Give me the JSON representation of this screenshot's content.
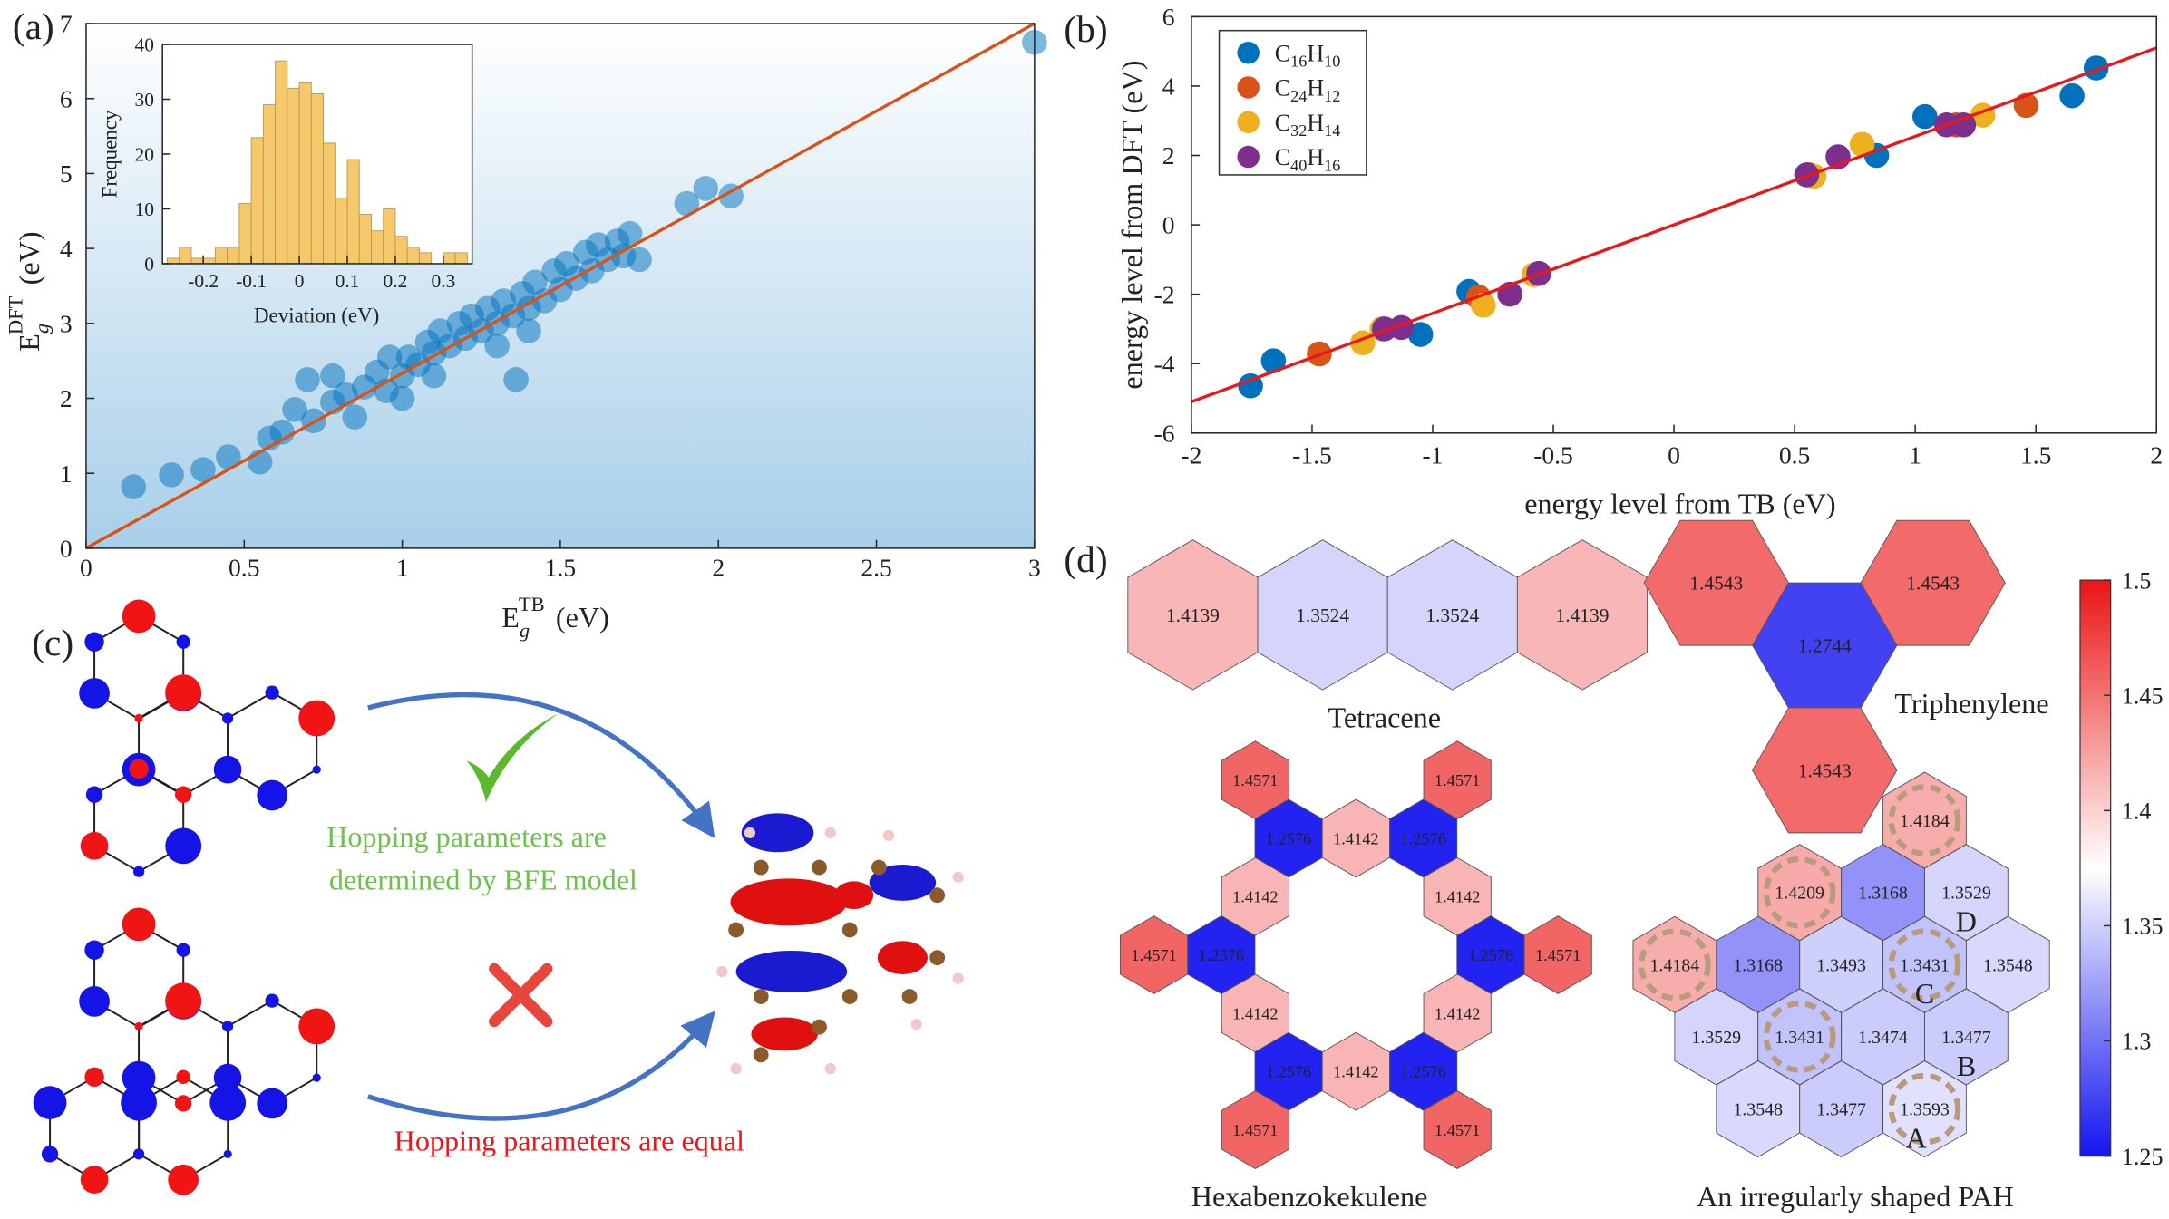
{
  "chart_data": [
    {
      "type": "scatter",
      "panel_label": "(a)",
      "xlabel": {
        "symbol": "E",
        "subscript": "g",
        "superscript": "TB",
        "unit": "(eV)"
      },
      "ylabel": {
        "symbol": "E",
        "subscript": "g",
        "superscript": "DFT",
        "unit": "(eV)"
      },
      "xlim": [
        0,
        3
      ],
      "ylim": [
        0,
        7
      ],
      "xticks": [
        0,
        0.5,
        1,
        1.5,
        2,
        2.5,
        3
      ],
      "yticks": [
        0,
        1,
        2,
        3,
        4,
        5,
        6,
        7
      ],
      "series": [
        {
          "color": "#0072bd",
          "x": [
            0.15,
            0.27,
            0.37,
            0.45,
            0.55,
            0.58,
            0.62,
            0.66,
            0.72,
            0.78,
            0.82,
            0.85,
            0.88,
            0.92,
            0.95,
            0.96,
            1.0,
            1.02,
            1.05,
            1.08,
            1.1,
            1.12,
            1.15,
            1.18,
            1.2,
            1.22,
            1.25,
            1.27,
            1.3,
            1.32,
            1.35,
            1.36,
            1.38,
            1.4,
            1.42,
            1.45,
            1.48,
            1.5,
            1.52,
            1.55,
            1.58,
            1.6,
            1.62,
            1.65,
            1.68,
            1.7,
            1.72,
            1.75,
            1.9,
            1.96,
            2.04,
            3.0,
            0.78,
            0.7,
            1.0,
            1.1,
            1.3,
            1.4
          ],
          "values": [
            0.82,
            0.98,
            1.05,
            1.22,
            1.15,
            1.47,
            1.55,
            1.85,
            1.7,
            1.95,
            2.05,
            1.75,
            2.15,
            2.35,
            2.1,
            2.55,
            2.3,
            2.55,
            2.45,
            2.75,
            2.6,
            2.9,
            2.7,
            3.0,
            2.8,
            3.1,
            2.9,
            3.2,
            3.0,
            3.3,
            3.1,
            2.25,
            3.4,
            3.2,
            3.55,
            3.3,
            3.7,
            3.45,
            3.8,
            3.6,
            3.95,
            3.7,
            4.05,
            3.85,
            4.1,
            3.9,
            4.2,
            3.85,
            4.6,
            4.8,
            4.7,
            6.75,
            2.3,
            2.25,
            2.0,
            2.3,
            2.7,
            2.9
          ]
        }
      ],
      "fit_line": {
        "color": "#d95319",
        "x": [
          0,
          3
        ],
        "values": [
          0,
          7
        ]
      }
    },
    {
      "type": "histogram",
      "xlabel": "Deviation (eV)",
      "ylabel": "Frequency",
      "xlim": [
        -0.285,
        0.36
      ],
      "ylim": [
        0,
        40
      ],
      "xticks": [
        -0.2,
        -0.1,
        0,
        0.1,
        0.2,
        0.3
      ],
      "yticks": [
        0,
        10,
        20,
        30,
        40
      ],
      "color": "#f5c86a",
      "bins": [
        -0.275,
        -0.25,
        -0.225,
        -0.2,
        -0.175,
        -0.15,
        -0.125,
        -0.1,
        -0.075,
        -0.05,
        -0.025,
        0,
        0.025,
        0.05,
        0.075,
        0.1,
        0.125,
        0.15,
        0.175,
        0.2,
        0.225,
        0.25,
        0.275,
        0.3,
        0.325,
        0.35
      ],
      "values": [
        1,
        3,
        1,
        1,
        3,
        3,
        11,
        23,
        29,
        37,
        32,
        33,
        31,
        22,
        12,
        19,
        9,
        6,
        10,
        5,
        3,
        2,
        0,
        2,
        2
      ]
    },
    {
      "type": "scatter",
      "panel_label": "(b)",
      "xlabel": "energy level from TB (eV)",
      "ylabel": "energy level from DFT (eV)",
      "xlim": [
        -2,
        2
      ],
      "ylim": [
        -6,
        6
      ],
      "xticks": [
        -2,
        -1.5,
        -1,
        -0.5,
        0,
        0.5,
        1,
        1.5,
        2
      ],
      "yticks": [
        -6,
        -4,
        -2,
        0,
        2,
        4,
        6
      ],
      "legend": "upper left",
      "series": [
        {
          "name": "C16H10",
          "color": "#0072bd",
          "x": [
            -1.755,
            -1.66,
            -1.05,
            -0.85,
            0.84,
            1.04,
            1.65,
            1.75
          ],
          "values": [
            -4.64,
            -3.92,
            -3.16,
            -1.92,
            2.0,
            3.12,
            3.72,
            4.52
          ]
        },
        {
          "name": "C24H12",
          "color": "#d95319",
          "x": [
            -1.47,
            -0.81,
            0.56,
            1.17,
            1.46
          ],
          "values": [
            -3.72,
            -2.08,
            1.44,
            2.88,
            3.44
          ]
        },
        {
          "name": "C32H14",
          "color": "#edb120",
          "x": [
            -1.29,
            -1.21,
            -0.79,
            -0.58,
            0.58,
            0.78,
            1.28
          ],
          "values": [
            -3.4,
            -3.0,
            -2.32,
            -1.44,
            1.4,
            2.32,
            3.16
          ]
        },
        {
          "name": "C40H16",
          "color": "#7e2f8e",
          "x": [
            -1.2,
            -1.13,
            -0.68,
            -0.56,
            0.55,
            0.68,
            1.13,
            1.2
          ],
          "values": [
            -3.0,
            -2.96,
            -2.0,
            -1.4,
            1.44,
            1.96,
            2.88,
            2.88
          ]
        }
      ],
      "fit_line": {
        "color": "#e8191c",
        "x": [
          -2,
          2
        ],
        "values": [
          -5.1,
          5.1
        ]
      }
    }
  ],
  "diagram": {
    "label": "(c)",
    "good_caption": [
      "Hopping parameters are",
      "determined by BFE model"
    ],
    "bad_caption": "Hopping parameters are equal"
  },
  "hexmaps": {
    "label": "(d)",
    "molecules": [
      {
        "name": "Tetracene",
        "cells": [
          {
            "value": 1.4139
          },
          {
            "value": 1.3524
          },
          {
            "value": 1.3524
          },
          {
            "value": 1.4139
          }
        ]
      },
      {
        "name": "Triphenylene",
        "cells": [
          {
            "value": 1.4543
          },
          {
            "value": 1.4543
          },
          {
            "value": 1.2744
          },
          {
            "value": 1.4543
          }
        ]
      },
      {
        "name": "Hexabenzokekulene",
        "cells": [
          {
            "value": 1.4571
          },
          {
            "value": 1.4571
          },
          {
            "value": 1.2576
          },
          {
            "value": 1.4142
          },
          {
            "value": 1.2576
          },
          {
            "value": 1.4142
          },
          {
            "value": 1.4142
          },
          {
            "value": 1.4571
          },
          {
            "value": 1.2576
          },
          {
            "value": 1.2576
          },
          {
            "value": 1.4571
          },
          {
            "value": 1.4142
          },
          {
            "value": 1.4142
          },
          {
            "value": 1.2576
          },
          {
            "value": 1.4142
          },
          {
            "value": 1.2576
          },
          {
            "value": 1.4571
          },
          {
            "value": 1.4571
          }
        ]
      },
      {
        "name": "An irregularly shaped PAH",
        "cells": [
          {
            "value": 1.4184,
            "marked": true
          },
          {
            "value": 1.4209,
            "marked": true
          },
          {
            "value": 1.3168
          },
          {
            "value": 1.3529,
            "tag": "D"
          },
          {
            "value": 1.4184,
            "marked": true
          },
          {
            "value": 1.3168
          },
          {
            "value": 1.3493
          },
          {
            "value": 1.3431,
            "marked": true,
            "tag": "C"
          },
          {
            "value": 1.3548
          },
          {
            "value": 1.3529
          },
          {
            "value": 1.3431,
            "marked": true
          },
          {
            "value": 1.3474
          },
          {
            "value": 1.3477,
            "tag": "B"
          },
          {
            "value": 1.3548
          },
          {
            "value": 1.3477
          },
          {
            "value": 1.3593,
            "marked": true,
            "tag": "A"
          }
        ]
      }
    ],
    "colorbar": {
      "lim": [
        1.25,
        1.5
      ],
      "ticks": [
        1.25,
        1.3,
        1.35,
        1.4,
        1.45,
        1.5
      ]
    }
  }
}
